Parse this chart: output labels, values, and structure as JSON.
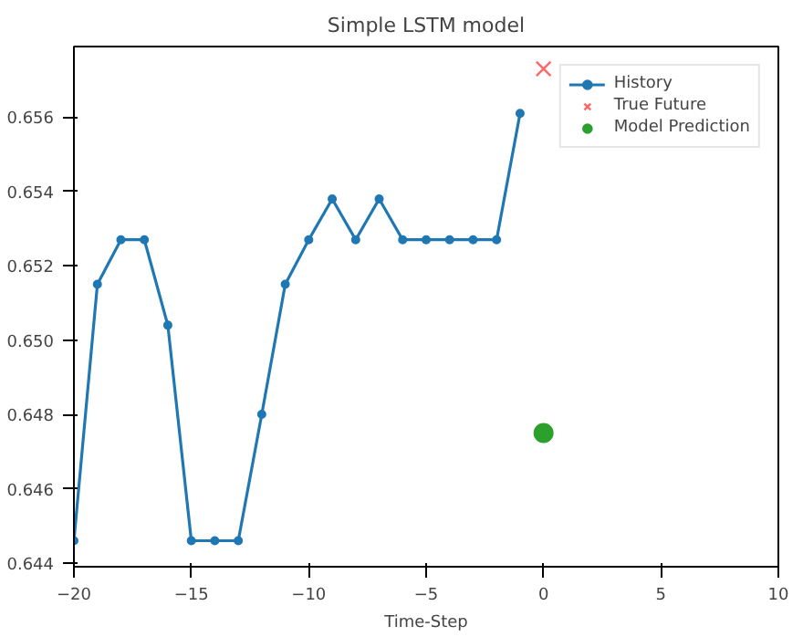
{
  "chart_data": {
    "type": "line",
    "title": "Simple LSTM model",
    "xlabel": "Time-Step",
    "series": [
      {
        "name": "History",
        "marker": "circle",
        "color": "#1f77b4",
        "x": [
          -20,
          -19,
          -18,
          -17,
          -16,
          -15,
          -14,
          -13,
          -12,
          -11,
          -10,
          -9,
          -8,
          -7,
          -6,
          -5,
          -4,
          -3,
          -2,
          -1
        ],
        "values": [
          0.6446,
          0.6515,
          0.6527,
          0.6527,
          0.6504,
          0.6446,
          0.6446,
          0.6446,
          0.648,
          0.6515,
          0.6527,
          0.6538,
          0.6527,
          0.6538,
          0.6527,
          0.6527,
          0.6527,
          0.6527,
          0.6527,
          0.6561
        ]
      },
      {
        "name": "True Future",
        "type": "scatter",
        "marker": "cross",
        "color": "#ff0000",
        "x": [
          0
        ],
        "values": [
          0.6573
        ]
      },
      {
        "name": "Model Prediction",
        "type": "scatter",
        "marker": "circle",
        "color": "#2ca02c",
        "x": [
          0
        ],
        "values": [
          0.6475
        ]
      }
    ],
    "xlim": [
      -20,
      10
    ],
    "ylim": [
      0.6439,
      0.6579
    ],
    "xticks": [
      {
        "value": -20,
        "label": "−20"
      },
      {
        "value": -15,
        "label": "−15"
      },
      {
        "value": -10,
        "label": "−10"
      },
      {
        "value": -5,
        "label": "−5"
      },
      0,
      5,
      10
    ],
    "yticks": [
      {
        "value": 0.644,
        "label": "0.644"
      },
      {
        "value": 0.646,
        "label": "0.646"
      },
      {
        "value": 0.648,
        "label": "0.648"
      },
      {
        "value": 0.65,
        "label": "0.650"
      },
      {
        "value": 0.652,
        "label": "0.652"
      },
      {
        "value": 0.654,
        "label": "0.654"
      },
      {
        "value": 0.656,
        "label": "0.656"
      }
    ],
    "legend": "top right",
    "grid": false
  }
}
